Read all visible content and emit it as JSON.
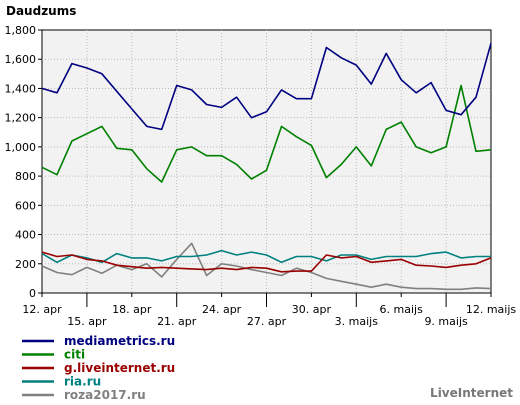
{
  "chart_data": {
    "type": "line",
    "title": "Daudzums",
    "brand": "LiveInternet",
    "ylim": [
      0,
      1800
    ],
    "y_ticks": [
      0,
      200,
      400,
      600,
      800,
      1000,
      1200,
      1400,
      1600,
      1800
    ],
    "y_tick_labels": [
      "0",
      "200",
      "400",
      "600",
      "800",
      "1,000",
      "1,200",
      "1,400",
      "1,600",
      "1,800"
    ],
    "grid": true,
    "legend_position": "bottom-left",
    "x_ticks": [
      {
        "index": 0,
        "label": "12. apr",
        "row": 0
      },
      {
        "index": 3,
        "label": "15. apr",
        "row": 1
      },
      {
        "index": 6,
        "label": "18. apr",
        "row": 0
      },
      {
        "index": 9,
        "label": "21. apr",
        "row": 1
      },
      {
        "index": 12,
        "label": "24. apr",
        "row": 0
      },
      {
        "index": 15,
        "label": "27. apr",
        "row": 1
      },
      {
        "index": 18,
        "label": "30. apr",
        "row": 0
      },
      {
        "index": 21,
        "label": "3. maijs",
        "row": 1
      },
      {
        "index": 24,
        "label": "6. maijs",
        "row": 0
      },
      {
        "index": 27,
        "label": "9. maijs",
        "row": 1
      },
      {
        "index": 30,
        "label": "12. maijs",
        "row": 0
      }
    ],
    "series": [
      {
        "name": "mediametrics.ru",
        "color": "#000080",
        "values": [
          1400,
          1370,
          1570,
          1540,
          1500,
          1380,
          1260,
          1140,
          1120,
          1420,
          1390,
          1290,
          1270,
          1340,
          1200,
          1240,
          1390,
          1330,
          1330,
          1680,
          1610,
          1560,
          1430,
          1640,
          1460,
          1370,
          1440,
          1250,
          1220,
          1340,
          1710
        ]
      },
      {
        "name": "citi",
        "color": "#008000",
        "values": [
          860,
          810,
          1040,
          1090,
          1140,
          990,
          980,
          850,
          760,
          980,
          1000,
          940,
          940,
          880,
          780,
          840,
          1140,
          1070,
          1010,
          790,
          880,
          1000,
          870,
          1120,
          1170,
          1000,
          960,
          1000,
          1420,
          970,
          980
        ]
      },
      {
        "name": "g.liveinternet.ru",
        "color": "#990000",
        "values": [
          280,
          250,
          260,
          230,
          220,
          190,
          180,
          170,
          175,
          170,
          165,
          160,
          170,
          160,
          175,
          170,
          145,
          150,
          150,
          260,
          240,
          250,
          210,
          220,
          230,
          190,
          185,
          175,
          190,
          200,
          240
        ]
      },
      {
        "name": "ria.ru",
        "color": "#008080",
        "values": [
          270,
          210,
          260,
          240,
          210,
          270,
          240,
          240,
          220,
          250,
          250,
          260,
          290,
          260,
          280,
          260,
          210,
          250,
          250,
          220,
          260,
          260,
          230,
          250,
          250,
          250,
          270,
          280,
          240,
          250,
          250
        ]
      },
      {
        "name": "roza2017.ru",
        "color": "#808080",
        "values": [
          185,
          140,
          125,
          175,
          135,
          190,
          160,
          200,
          110,
          230,
          340,
          120,
          200,
          185,
          160,
          140,
          120,
          170,
          140,
          100,
          80,
          60,
          40,
          60,
          40,
          30,
          30,
          25,
          25,
          35,
          30
        ]
      }
    ]
  }
}
